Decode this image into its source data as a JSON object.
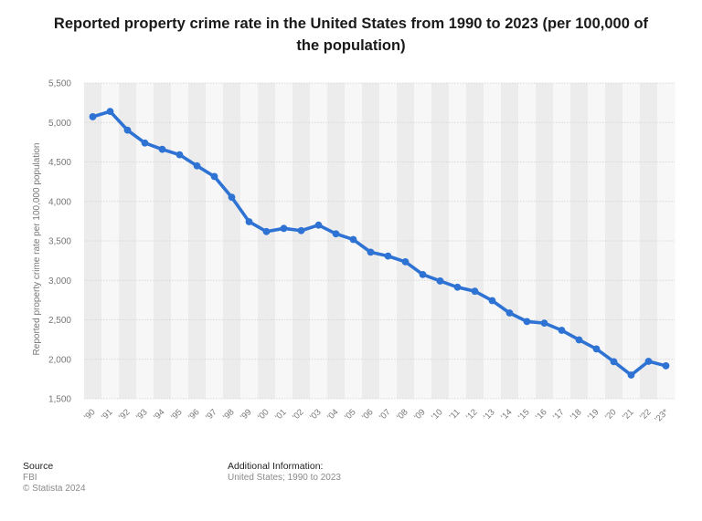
{
  "title": {
    "line1": "Reported property crime rate in the United States from 1990 to 2023 (per 100,000 of",
    "line2": "the population)"
  },
  "colors": {
    "line": "#2e73d3",
    "band_dark": "#ececec",
    "band_light": "#f7f7f7",
    "gridline": "#d8d8d8",
    "axis_text": "#777777"
  },
  "chart_data": {
    "type": "line",
    "title": "Reported property crime rate in the United States from 1990 to 2023 (per 100,000 of the population)",
    "xlabel": "",
    "ylabel": "Reported property crime rate per 100,000 population",
    "ylim": [
      1500,
      5500
    ],
    "yticks": [
      1500,
      2000,
      2500,
      3000,
      3500,
      4000,
      4500,
      5000,
      5500
    ],
    "ytick_labels": [
      "1,500",
      "2,000",
      "2,500",
      "3,000",
      "3,500",
      "4,000",
      "4,500",
      "5,000",
      "5,500"
    ],
    "categories": [
      "'90",
      "'91",
      "'92",
      "'93",
      "'94",
      "'95",
      "'96",
      "'97",
      "'98",
      "'99",
      "'00",
      "'01",
      "'02",
      "'03",
      "'04",
      "'05",
      "'06",
      "'07",
      "'08",
      "'09",
      "'10",
      "'11",
      "'12",
      "'13",
      "'14",
      "'15",
      "'16",
      "'17",
      "'18",
      "'19",
      "'20",
      "'21",
      "'22",
      "'23*"
    ],
    "series": [
      {
        "name": "Reported property crime rate",
        "values": [
          5073,
          5140,
          4903,
          4740,
          4660,
          4591,
          4451,
          4316,
          4053,
          3743,
          3618,
          3658,
          3630,
          3700,
          3590,
          3517,
          3357,
          3308,
          3235,
          3074,
          2992,
          2913,
          2862,
          2743,
          2587,
          2478,
          2458,
          2367,
          2246,
          2131,
          1970,
          1800,
          1974,
          1917
        ]
      }
    ],
    "grid": true,
    "legend": "none"
  },
  "footer": {
    "source_heading": "Source",
    "source_lines": [
      "FBI",
      "© Statista 2024"
    ],
    "info_heading": "Additional Information:",
    "info_text": "United States; 1990 to 2023"
  }
}
